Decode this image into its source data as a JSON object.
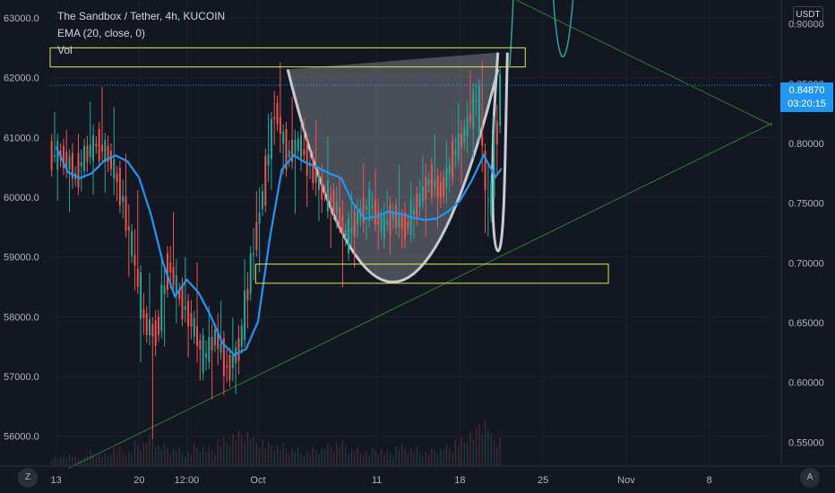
{
  "legend": {
    "symbol": "The Sandbox / Tether, 4h, KUCOIN",
    "ema": "EMA (20, close, 0)",
    "vol": "Vol"
  },
  "chart_data": {
    "type": "candlestick",
    "currency_unit": "USDT",
    "left_axis": {
      "ticks": [
        "63000.0",
        "62000.0",
        "61000.0",
        "60000.0",
        "59000.0",
        "58000.0",
        "57000.0",
        "56000.0"
      ],
      "range": [
        55500,
        63300
      ]
    },
    "right_axis": {
      "ticks": [
        "0.90000",
        "0.85000",
        "0.80000",
        "0.75000",
        "0.70000",
        "0.65000",
        "0.60000",
        "0.55000"
      ],
      "range": [
        0.53,
        0.92
      ]
    },
    "x_ticks": [
      "13",
      "20",
      "12:00",
      "Oct",
      "11",
      "18",
      "25",
      "Nov",
      "8"
    ],
    "x_tick_positions": [
      0,
      7,
      11,
      17,
      27,
      34,
      41,
      48,
      55
    ],
    "x_range": [
      -0.5,
      60.3
    ],
    "last_price": "0.84870",
    "countdown": "03:20:15",
    "ema_series": [
      [
        0,
        0.797
      ],
      [
        1,
        0.776
      ],
      [
        2,
        0.771
      ],
      [
        3,
        0.775
      ],
      [
        4,
        0.785
      ],
      [
        5,
        0.79
      ],
      [
        6,
        0.785
      ],
      [
        7,
        0.771
      ],
      [
        8,
        0.74
      ],
      [
        9,
        0.7
      ],
      [
        10,
        0.672
      ],
      [
        11,
        0.686
      ],
      [
        12,
        0.675
      ],
      [
        13,
        0.656
      ],
      [
        14,
        0.633
      ],
      [
        15,
        0.623
      ],
      [
        16,
        0.628
      ],
      [
        17,
        0.651
      ],
      [
        18,
        0.721
      ],
      [
        19,
        0.778
      ],
      [
        20,
        0.79
      ],
      [
        21,
        0.784
      ],
      [
        22,
        0.78
      ],
      [
        23,
        0.775
      ],
      [
        24,
        0.771
      ],
      [
        25,
        0.75
      ],
      [
        26,
        0.737
      ],
      [
        27,
        0.739
      ],
      [
        28,
        0.743
      ],
      [
        29,
        0.741
      ],
      [
        30,
        0.738
      ],
      [
        31,
        0.736
      ],
      [
        32,
        0.737
      ],
      [
        33,
        0.743
      ],
      [
        34,
        0.752
      ],
      [
        35,
        0.769
      ],
      [
        36,
        0.79
      ],
      [
        37,
        0.772
      ],
      [
        37.5,
        0.779
      ]
    ],
    "price_candles": [
      [
        0,
        0.79,
        0.82,
        0.77,
        0.79
      ],
      [
        1,
        0.79,
        0.8,
        0.75,
        0.78
      ],
      [
        2,
        0.77,
        0.8,
        0.76,
        0.79
      ],
      [
        3,
        0.79,
        0.83,
        0.77,
        0.8
      ],
      [
        4,
        0.8,
        0.84,
        0.77,
        0.79
      ],
      [
        5,
        0.79,
        0.82,
        0.75,
        0.76
      ],
      [
        6,
        0.76,
        0.79,
        0.69,
        0.71
      ],
      [
        7,
        0.71,
        0.77,
        0.62,
        0.65
      ],
      [
        8,
        0.65,
        0.68,
        0.56,
        0.64
      ],
      [
        9,
        0.64,
        0.72,
        0.61,
        0.7
      ],
      [
        10,
        0.7,
        0.74,
        0.66,
        0.67
      ],
      [
        11,
        0.67,
        0.7,
        0.63,
        0.65
      ],
      [
        12,
        0.65,
        0.69,
        0.6,
        0.62
      ],
      [
        13,
        0.62,
        0.66,
        0.59,
        0.64
      ],
      [
        14,
        0.64,
        0.67,
        0.6,
        0.61
      ],
      [
        15,
        0.61,
        0.65,
        0.59,
        0.63
      ],
      [
        16,
        0.63,
        0.72,
        0.62,
        0.7
      ],
      [
        17,
        0.7,
        0.78,
        0.68,
        0.76
      ],
      [
        18,
        0.76,
        0.85,
        0.74,
        0.83
      ],
      [
        19,
        0.83,
        0.86,
        0.77,
        0.79
      ],
      [
        20,
        0.79,
        0.83,
        0.75,
        0.8
      ],
      [
        21,
        0.8,
        0.82,
        0.76,
        0.78
      ],
      [
        22,
        0.78,
        0.81,
        0.74,
        0.76
      ],
      [
        23,
        0.76,
        0.79,
        0.72,
        0.75
      ],
      [
        24,
        0.75,
        0.77,
        0.69,
        0.72
      ],
      [
        25,
        0.72,
        0.76,
        0.7,
        0.74
      ],
      [
        26,
        0.74,
        0.77,
        0.72,
        0.75
      ],
      [
        27,
        0.75,
        0.77,
        0.72,
        0.73
      ],
      [
        28,
        0.73,
        0.76,
        0.72,
        0.74
      ],
      [
        29,
        0.74,
        0.77,
        0.72,
        0.73
      ],
      [
        30,
        0.73,
        0.76,
        0.72,
        0.75
      ],
      [
        31,
        0.75,
        0.79,
        0.73,
        0.77
      ],
      [
        32,
        0.77,
        0.8,
        0.74,
        0.76
      ],
      [
        33,
        0.76,
        0.8,
        0.75,
        0.79
      ],
      [
        34,
        0.79,
        0.83,
        0.77,
        0.81
      ],
      [
        35,
        0.81,
        0.87,
        0.79,
        0.84
      ],
      [
        36,
        0.84,
        0.88,
        0.71,
        0.74
      ],
      [
        37,
        0.74,
        0.86,
        0.73,
        0.85
      ]
    ],
    "volume_profile": [
      3,
      4,
      3,
      5,
      4,
      6,
      5,
      8,
      10,
      7,
      6,
      5,
      7,
      6,
      9,
      11,
      12,
      9,
      8,
      7,
      6,
      5,
      6,
      7,
      8,
      6,
      5,
      6,
      5,
      7,
      6,
      5,
      6,
      7,
      9,
      12,
      16,
      10
    ]
  }
}
